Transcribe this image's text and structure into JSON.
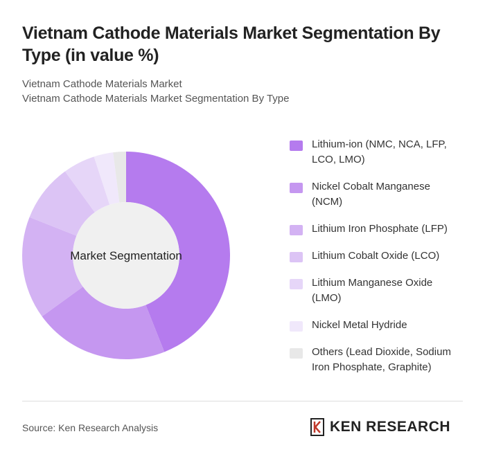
{
  "chart_data": {
    "type": "donut",
    "title": "Vietnam Cathode Materials Market Segmentation By Type (in value %)",
    "subtitles": [
      "Vietnam Cathode Materials Market",
      "Vietnam Cathode Materials Market Segmentation By Type"
    ],
    "center_label": "Market Segmentation",
    "categories": [
      "Lithium-ion (NMC, NCA, LFP, LCO, LMO)",
      "Nickel Cobalt Manganese (NCM)",
      "Lithium Iron Phosphate (LFP)",
      "Lithium Cobalt Oxide (LCO)",
      "Lithium Manganese Oxide (LMO)",
      "Nickel Metal Hydride",
      "Others (Lead Dioxide, Sodium Iron Phosphate, Graphite)"
    ],
    "values": [
      44,
      21,
      16,
      9,
      5,
      3,
      2
    ],
    "colors": [
      "#b57bee",
      "#c597f0",
      "#d3b2f3",
      "#dcc4f5",
      "#e6d6f8",
      "#f0e8fb",
      "#e8e8e8"
    ],
    "source": "Source: Ken Research Analysis",
    "logo": "KEN RESEARCH"
  }
}
